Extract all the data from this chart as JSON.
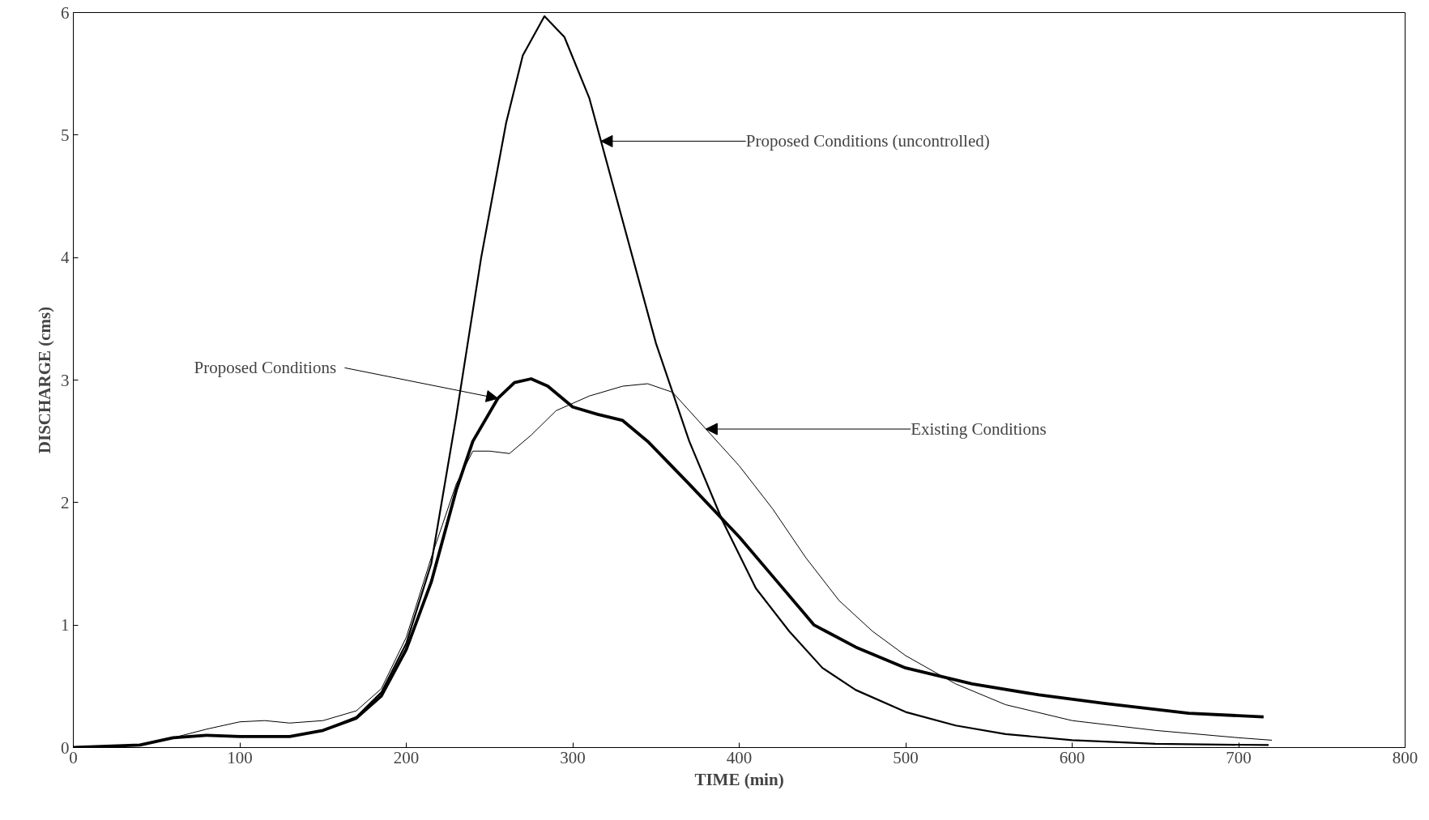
{
  "chart_data": {
    "type": "line",
    "xlabel": "TIME (min)",
    "ylabel": "DISCHARGE (cms)",
    "xlim": [
      0,
      800
    ],
    "ylim": [
      0,
      6
    ],
    "xticks": [
      0,
      100,
      200,
      300,
      400,
      500,
      600,
      700,
      800
    ],
    "yticks": [
      0,
      1,
      2,
      3,
      4,
      5,
      6
    ],
    "grid": false,
    "marker": "none",
    "line_style": "solid",
    "series": [
      {
        "color": "#000000",
        "x": [
          0,
          40,
          60,
          80,
          100,
          130,
          150,
          170,
          185,
          200,
          215,
          230,
          245,
          260,
          270,
          283,
          295,
          310,
          330,
          350,
          370,
          390,
          410,
          430,
          450,
          470,
          500,
          530,
          560,
          600,
          650,
          718
        ],
        "values": [
          0,
          0.02,
          0.08,
          0.1,
          0.09,
          0.09,
          0.14,
          0.25,
          0.45,
          0.85,
          1.5,
          2.7,
          4.0,
          5.1,
          5.65,
          5.97,
          5.8,
          5.3,
          4.3,
          3.3,
          2.5,
          1.85,
          1.3,
          0.95,
          0.65,
          0.47,
          0.29,
          0.18,
          0.11,
          0.06,
          0.03,
          0.02
        ]
      },
      {
        "color": "#000000",
        "x": [
          0,
          40,
          60,
          80,
          100,
          130,
          150,
          170,
          185,
          200,
          215,
          230,
          240,
          255,
          265,
          275,
          285,
          300,
          315,
          330,
          345,
          370,
          400,
          420,
          445,
          470,
          500,
          540,
          580,
          620,
          670,
          715
        ],
        "values": [
          0,
          0.02,
          0.08,
          0.1,
          0.09,
          0.09,
          0.14,
          0.24,
          0.42,
          0.8,
          1.35,
          2.1,
          2.5,
          2.85,
          2.98,
          3.01,
          2.95,
          2.78,
          2.72,
          2.67,
          2.5,
          2.15,
          1.72,
          1.4,
          1.0,
          0.82,
          0.65,
          0.52,
          0.43,
          0.36,
          0.28,
          0.25
        ]
      },
      {
        "color": "#000000",
        "x": [
          0,
          40,
          60,
          80,
          100,
          115,
          130,
          150,
          170,
          185,
          200,
          215,
          230,
          240,
          250,
          262,
          275,
          290,
          310,
          330,
          345,
          360,
          380,
          400,
          420,
          440,
          460,
          480,
          500,
          530,
          560,
          600,
          650,
          700,
          720
        ],
        "values": [
          0,
          0.02,
          0.08,
          0.15,
          0.21,
          0.22,
          0.2,
          0.22,
          0.3,
          0.48,
          0.9,
          1.55,
          2.15,
          2.42,
          2.42,
          2.4,
          2.55,
          2.75,
          2.87,
          2.95,
          2.97,
          2.9,
          2.6,
          2.3,
          1.95,
          1.55,
          1.2,
          0.95,
          0.75,
          0.52,
          0.35,
          0.22,
          0.14,
          0.08,
          0.06
        ]
      }
    ],
    "annotations": [
      {
        "text": "Proposed Conditions (uncontrolled)",
        "x": 317,
        "y": 4.95
      },
      {
        "text": "Proposed Conditions",
        "x": 255,
        "y": 2.85
      },
      {
        "text": "Existing Conditions",
        "x": 380,
        "y": 2.6
      }
    ]
  }
}
